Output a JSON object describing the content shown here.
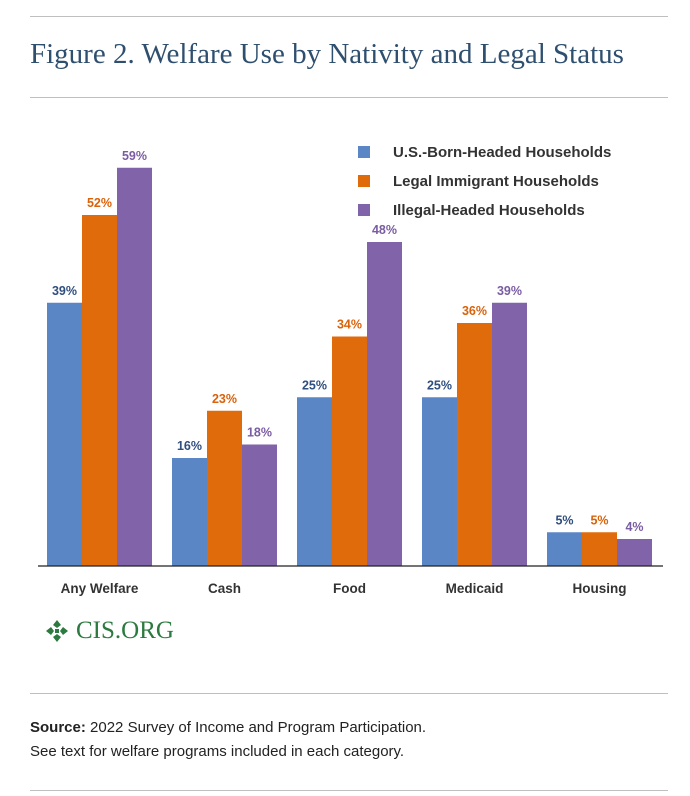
{
  "title": "Figure 2. Welfare Use by Nativity and Legal Status",
  "logo_text": "CIS.ORG",
  "source_label": "Source:",
  "source_text": "2022 Survey of Income and Program Participation.",
  "note": "See text for welfare programs included in each category.",
  "chart_data": {
    "type": "bar",
    "categories": [
      "Any Welfare",
      "Cash",
      "Food",
      "Medicaid",
      "Housing"
    ],
    "series": [
      {
        "name": "U.S.-Born-Headed Households",
        "values": [
          39,
          16,
          25,
          25,
          5
        ],
        "labels": [
          "39%",
          "16%",
          "25%",
          "25%",
          "5%"
        ],
        "color": "#5b86c5",
        "label_color": "#2f4f7f"
      },
      {
        "name": "Legal Immigrant Households",
        "values": [
          52,
          23,
          34,
          36,
          5
        ],
        "labels": [
          "52%",
          "23%",
          "34%",
          "36%",
          "5%"
        ],
        "color": "#e06b0b",
        "label_color": "#d9620a"
      },
      {
        "name": "Illegal-Headed Households",
        "values": [
          59,
          18,
          48,
          39,
          4
        ],
        "labels": [
          "59%",
          "18%",
          "48%",
          "39%",
          "4%"
        ],
        "color": "#8063a8",
        "label_color": "#7a5ca3"
      }
    ],
    "ylim": [
      0,
      60
    ],
    "legend_position": "top-right",
    "grid": false
  }
}
